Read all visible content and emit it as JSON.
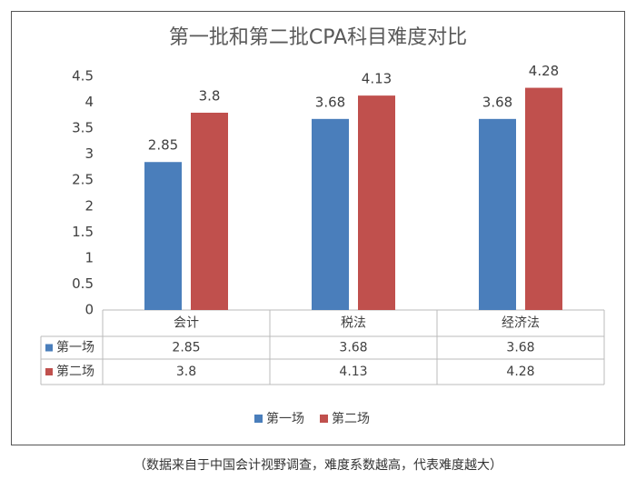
{
  "chart_data": {
    "type": "bar",
    "title": "第一批和第二批CPA科目难度对比",
    "categories": [
      "会计",
      "税法",
      "经济法"
    ],
    "series": [
      {
        "name": "第一场",
        "color": "#4a7ebb",
        "values": [
          2.85,
          3.68,
          3.68
        ]
      },
      {
        "name": "第二场",
        "color": "#c0504d",
        "values": [
          3.8,
          4.13,
          4.28
        ]
      }
    ],
    "ylim": [
      0,
      4.5
    ],
    "yticks": [
      0,
      0.5,
      1,
      1.5,
      2,
      2.5,
      3,
      3.5,
      4,
      4.5
    ],
    "grid": false,
    "caption": "（数据来自于中国会计视野调查，难度系数越高，代表难度越大）"
  }
}
